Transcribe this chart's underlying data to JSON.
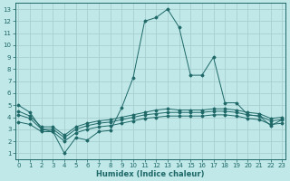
{
  "xlabel": "Humidex (Indice chaleur)",
  "bg_color": "#c0e8e8",
  "grid_color": "#a8d0d0",
  "line_color": "#1e6868",
  "x_ticks": [
    0,
    1,
    2,
    3,
    4,
    5,
    6,
    7,
    8,
    9,
    10,
    11,
    12,
    13,
    14,
    15,
    16,
    17,
    18,
    19,
    20,
    21,
    22,
    23
  ],
  "y_ticks": [
    1,
    2,
    3,
    4,
    5,
    6,
    7,
    8,
    9,
    10,
    11,
    12,
    13
  ],
  "xlim": [
    -0.3,
    23.3
  ],
  "ylim": [
    0.5,
    13.5
  ],
  "series": [
    {
      "x": [
        0,
        1,
        2,
        3,
        4,
        5,
        6,
        7,
        8,
        9,
        10,
        11,
        12,
        13,
        14,
        15,
        16,
        17,
        18,
        19,
        20,
        21,
        22,
        23
      ],
      "y": [
        5.0,
        4.4,
        3.0,
        2.8,
        1.0,
        2.3,
        2.1,
        2.8,
        2.9,
        4.8,
        7.3,
        12.0,
        12.3,
        13.0,
        11.5,
        7.5,
        7.5,
        9.0,
        5.2,
        5.2,
        4.2,
        4.1,
        3.3,
        3.8
      ]
    },
    {
      "x": [
        0,
        1,
        2,
        3,
        4,
        5,
        6,
        7,
        8,
        9,
        10,
        11,
        12,
        13,
        14,
        15,
        16,
        17,
        18,
        19,
        20,
        21,
        22,
        23
      ],
      "y": [
        4.5,
        4.1,
        3.2,
        3.2,
        2.5,
        3.2,
        3.5,
        3.7,
        3.8,
        4.0,
        4.2,
        4.4,
        4.6,
        4.7,
        4.6,
        4.6,
        4.6,
        4.7,
        4.7,
        4.6,
        4.4,
        4.3,
        3.9,
        4.0
      ]
    },
    {
      "x": [
        0,
        1,
        2,
        3,
        4,
        5,
        6,
        7,
        8,
        9,
        10,
        11,
        12,
        13,
        14,
        15,
        16,
        17,
        18,
        19,
        20,
        21,
        22,
        23
      ],
      "y": [
        4.2,
        3.9,
        3.0,
        3.0,
        2.3,
        3.0,
        3.3,
        3.5,
        3.6,
        3.8,
        4.0,
        4.2,
        4.3,
        4.4,
        4.4,
        4.4,
        4.4,
        4.5,
        4.5,
        4.4,
        4.2,
        4.1,
        3.7,
        3.8
      ]
    },
    {
      "x": [
        0,
        1,
        2,
        3,
        4,
        5,
        6,
        7,
        8,
        9,
        10,
        11,
        12,
        13,
        14,
        15,
        16,
        17,
        18,
        19,
        20,
        21,
        22,
        23
      ],
      "y": [
        3.6,
        3.4,
        2.8,
        2.8,
        2.0,
        2.7,
        3.0,
        3.2,
        3.3,
        3.5,
        3.7,
        3.9,
        4.0,
        4.1,
        4.1,
        4.1,
        4.1,
        4.2,
        4.2,
        4.1,
        3.9,
        3.8,
        3.4,
        3.5
      ]
    }
  ]
}
